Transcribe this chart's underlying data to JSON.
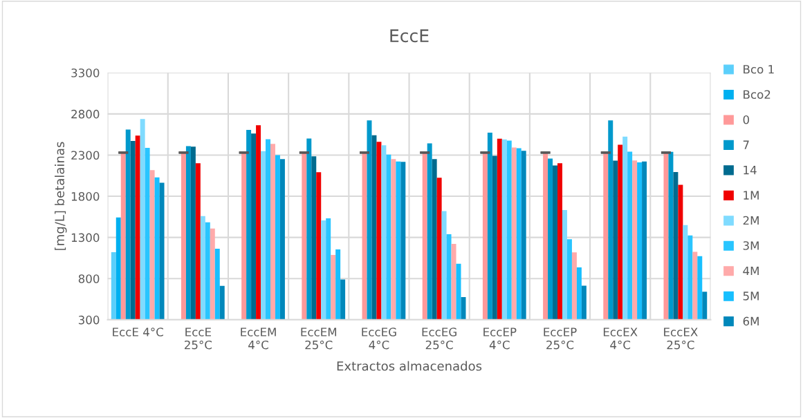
{
  "chart_data": {
    "type": "bar",
    "title": "EccE",
    "xlabel": "Extractos almacenados",
    "ylabel": "[mg/L] betalainas",
    "categories": [
      "EccE 4°C",
      "EccE 25°C",
      "EccEM 4°C",
      "EccEM 25°C",
      "EccEG 4°C",
      "EccEG 25°C",
      "EccEP 4°C",
      "EccEP 25°C",
      "EccEX 4°C",
      "EccEX 25°C"
    ],
    "ylim": [
      300,
      3300
    ],
    "yticks": [
      300,
      800,
      1300,
      1800,
      2300,
      2800,
      3300
    ],
    "grid": true,
    "legend": "right",
    "series": [
      {
        "name": "Bco 1",
        "color": "#5bcffb",
        "values": [
          1121,
          null,
          null,
          null,
          null,
          null,
          null,
          null,
          null,
          null
        ]
      },
      {
        "name": "Bco2",
        "color": "#00b0f0",
        "values": [
          1543,
          null,
          null,
          null,
          null,
          null,
          null,
          null,
          null,
          null
        ]
      },
      {
        "name": "0",
        "color": "#ff9999",
        "values": [
          2330,
          2330,
          2330,
          2330,
          2330,
          2330,
          2330,
          2330,
          2330,
          2330
        ],
        "errors": [
          0,
          0,
          0,
          0,
          0,
          0,
          0,
          0,
          0,
          0
        ]
      },
      {
        "name": "7",
        "color": "#0099cc",
        "values": [
          2611,
          2409,
          2606,
          2502,
          2721,
          2443,
          2572,
          2257,
          2721,
          2339
        ]
      },
      {
        "name": "14",
        "color": "#006b8f",
        "values": [
          2471,
          2403,
          2561,
          2285,
          2541,
          2252,
          2291,
          2173,
          2232,
          2094
        ]
      },
      {
        "name": "1M",
        "color": "#f00000",
        "values": [
          2536,
          2201,
          2662,
          2091,
          2462,
          2024,
          2499,
          2201,
          2426,
          1939
        ]
      },
      {
        "name": "2M",
        "color": "#7fdbff",
        "values": [
          2738,
          1560,
          2347,
          1506,
          2420,
          1620,
          2490,
          1633,
          2524,
          1450
        ]
      },
      {
        "name": "3M",
        "color": "#29c5ff",
        "values": [
          2387,
          1484,
          2493,
          1532,
          2305,
          1338,
          2476,
          1279,
          2341,
          1324
        ]
      },
      {
        "name": "4M",
        "color": "#ffaaaa",
        "values": [
          2117,
          1408,
          2437,
          1087,
          2252,
          1222,
          2392,
          1118,
          2235,
          1124
        ]
      },
      {
        "name": "5M",
        "color": "#17bfff",
        "values": [
          2029,
          1163,
          2299,
          1155,
          2223,
          981,
          2384,
          936,
          2212,
          1073
        ]
      },
      {
        "name": "6M",
        "color": "#0088bb",
        "values": [
          1965,
          711,
          2252,
          789,
          2218,
          576,
          2353,
          713,
          2223,
          640
        ]
      }
    ]
  }
}
